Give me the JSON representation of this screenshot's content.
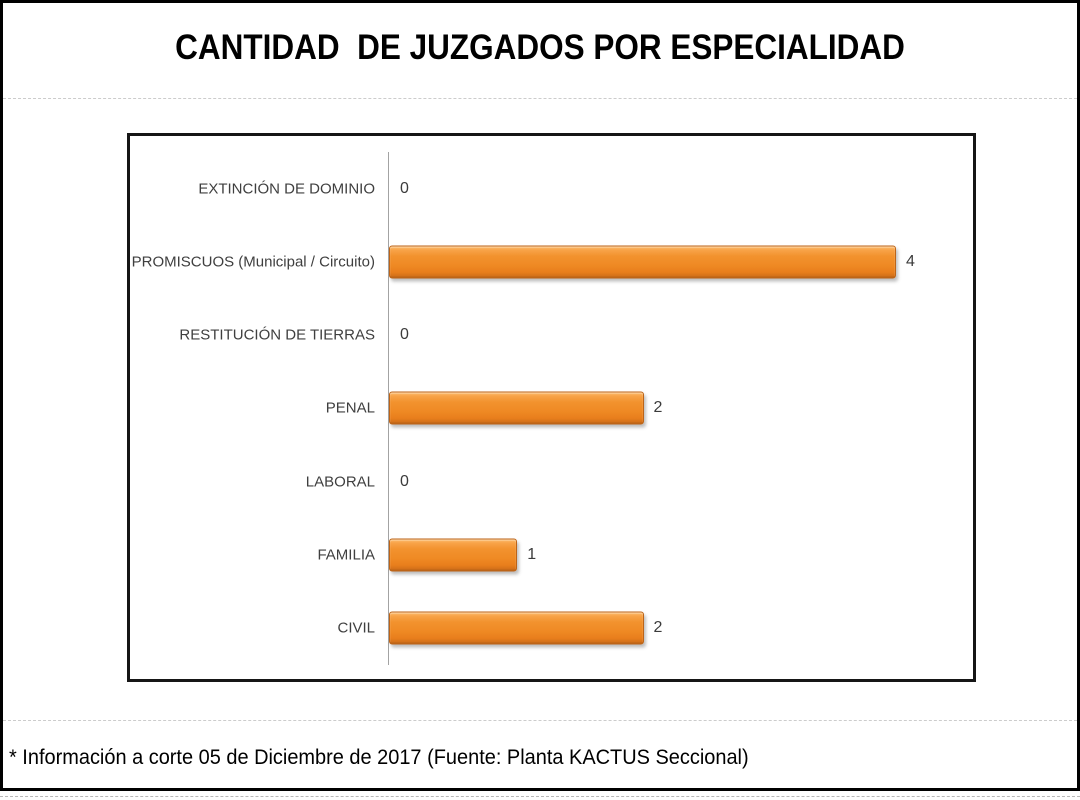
{
  "title": "CANTIDAD  DE JUZGADOS POR ESPECIALIDAD",
  "footer_note": "* Información a corte 05 de Diciembre de 2017 (Fuente: Planta KACTUS Seccional)",
  "chart_data": {
    "type": "bar",
    "orientation": "horizontal",
    "title": "CANTIDAD  DE JUZGADOS POR ESPECIALIDAD",
    "categories": [
      "EXTINCIÓN DE DOMINIO",
      "PROMISCUOS (Municipal / Circuito)",
      "RESTITUCIÓN DE TIERRAS",
      "PENAL",
      "LABORAL",
      "FAMILIA",
      "CIVIL"
    ],
    "values": [
      0,
      4,
      0,
      2,
      0,
      1,
      2
    ],
    "xlabel": "",
    "ylabel": "",
    "xlim": [
      0,
      4
    ],
    "grid": false,
    "legend": false,
    "data_labels": true,
    "bar_color": "#F0902C",
    "bar_border_color": "#BD6417",
    "label_color": "#3F3F3F",
    "axis_color": "#A3A3A3"
  }
}
